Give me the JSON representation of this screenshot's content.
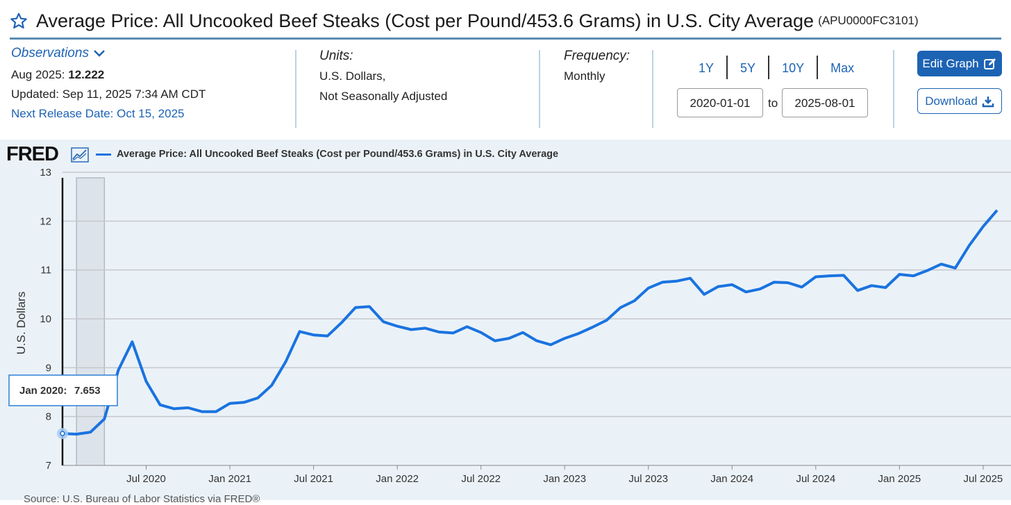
{
  "header": {
    "title": "Average Price: All Uncooked Beef Steaks (Cost per Pound/453.6 Grams) in U.S. City Average",
    "series_id": "(APU0000FC3101)"
  },
  "observations": {
    "link_label": "Observations",
    "latest_date": "Aug 2025:",
    "latest_value": "12.222",
    "updated": "Updated: Sep 11, 2025 7:34 AM CDT",
    "next_release": "Next Release Date: Oct 15, 2025"
  },
  "units": {
    "label": "Units:",
    "line1": "U.S. Dollars,",
    "line2": "Not Seasonally Adjusted"
  },
  "frequency": {
    "label": "Frequency:",
    "value": "Monthly"
  },
  "range_buttons": [
    "1Y",
    "5Y",
    "10Y",
    "Max"
  ],
  "date_range": {
    "start": "2020-01-01",
    "to_label": "to",
    "end": "2025-08-01"
  },
  "actions": {
    "edit_graph": "Edit Graph",
    "download": "Download"
  },
  "colors": {
    "accent": "#1d63b4",
    "series": "#1a73e0",
    "panel_bg": "#eaf2f8"
  },
  "chart_brand": "FRED",
  "source_text": "Source: U.S. Bureau of Labor Statistics via FRED®",
  "chart_data": {
    "type": "line",
    "title": "Average Price: All Uncooked Beef Steaks (Cost per Pound/453.6 Grams) in U.S. City Average",
    "legend": "Average Price: All Uncooked Beef Steaks (Cost per Pound/453.6 Grams) in U.S. City Average",
    "xlabel": "",
    "ylabel": "U.S. Dollars",
    "ylim": [
      7,
      13
    ],
    "yticks": [
      7,
      8,
      9,
      10,
      11,
      12,
      13
    ],
    "xticks": [
      "Jul 2020",
      "Jan 2021",
      "Jul 2021",
      "Jan 2022",
      "Jul 2022",
      "Jan 2023",
      "Jul 2023",
      "Jan 2024",
      "Jul 2024",
      "Jan 2025",
      "Jul 2025"
    ],
    "xtick_month_index": [
      6,
      12,
      18,
      24,
      30,
      36,
      42,
      48,
      54,
      60,
      66
    ],
    "recession_shading": {
      "start_index": 1,
      "end_index": 3
    },
    "tooltip": {
      "label": "Jan 2020:",
      "value": "7.653"
    },
    "x": [
      "2020-01",
      "2020-02",
      "2020-03",
      "2020-04",
      "2020-05",
      "2020-06",
      "2020-07",
      "2020-08",
      "2020-09",
      "2020-10",
      "2020-11",
      "2020-12",
      "2021-01",
      "2021-02",
      "2021-03",
      "2021-04",
      "2021-05",
      "2021-06",
      "2021-07",
      "2021-08",
      "2021-09",
      "2021-10",
      "2021-11",
      "2021-12",
      "2022-01",
      "2022-02",
      "2022-03",
      "2022-04",
      "2022-05",
      "2022-06",
      "2022-07",
      "2022-08",
      "2022-09",
      "2022-10",
      "2022-11",
      "2022-12",
      "2023-01",
      "2023-02",
      "2023-03",
      "2023-04",
      "2023-05",
      "2023-06",
      "2023-07",
      "2023-08",
      "2023-09",
      "2023-10",
      "2023-11",
      "2023-12",
      "2024-01",
      "2024-02",
      "2024-03",
      "2024-04",
      "2024-05",
      "2024-06",
      "2024-07",
      "2024-08",
      "2024-09",
      "2024-10",
      "2024-11",
      "2024-12",
      "2025-01",
      "2025-02",
      "2025-03",
      "2025-04",
      "2025-05",
      "2025-06",
      "2025-07",
      "2025-08"
    ],
    "series": [
      {
        "name": "APU0000FC3101",
        "values": [
          7.653,
          7.64,
          7.68,
          7.95,
          8.95,
          9.53,
          8.72,
          8.24,
          8.16,
          8.18,
          8.1,
          8.1,
          8.27,
          8.29,
          8.38,
          8.64,
          9.12,
          9.74,
          9.67,
          9.65,
          9.92,
          10.23,
          10.25,
          9.94,
          9.85,
          9.78,
          9.81,
          9.73,
          9.71,
          9.84,
          9.72,
          9.55,
          9.6,
          9.72,
          9.55,
          9.47,
          9.6,
          9.7,
          9.83,
          9.97,
          10.23,
          10.37,
          10.63,
          10.75,
          10.77,
          10.83,
          10.5,
          10.66,
          10.7,
          10.55,
          10.61,
          10.75,
          10.74,
          10.65,
          10.86,
          10.88,
          10.89,
          10.58,
          10.68,
          10.64,
          10.91,
          10.88,
          10.99,
          11.12,
          11.04,
          11.5,
          11.89,
          12.222
        ]
      }
    ]
  }
}
